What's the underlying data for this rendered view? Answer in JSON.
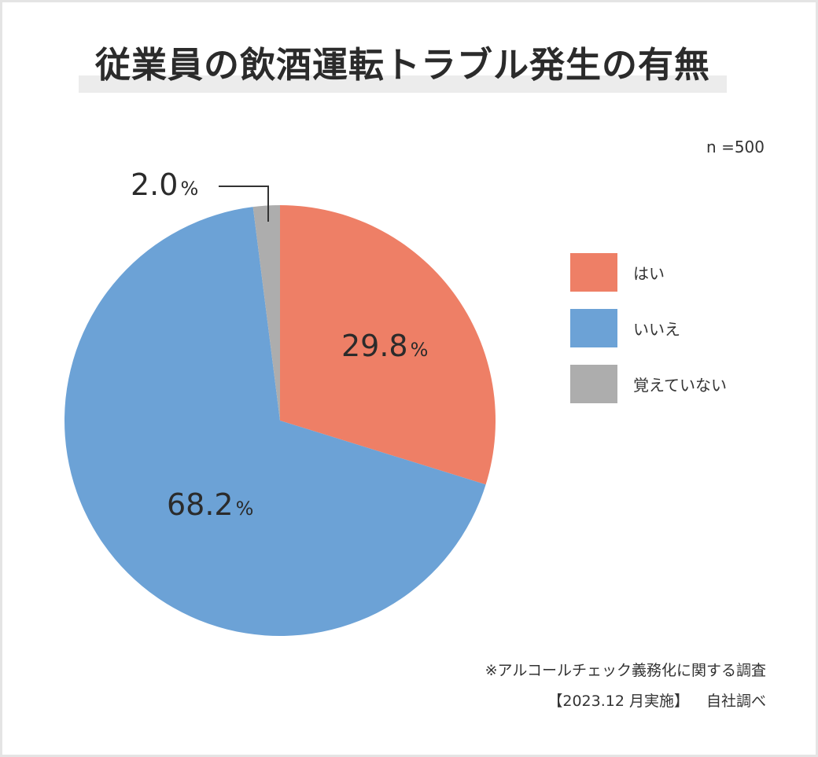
{
  "title": "従業員の飲酒運転トラブル発生の有無",
  "sample_size": "n =500",
  "chart_data": {
    "type": "pie",
    "categories": [
      "はい",
      "いいえ",
      "覚えていない"
    ],
    "values": [
      29.8,
      68.2,
      2.0
    ],
    "value_labels": [
      "29.8",
      "68.2",
      "2.0"
    ],
    "unit": "%",
    "colors": [
      "#ee7f66",
      "#6ca2d6",
      "#adadad"
    ],
    "start_angle": "12 o'clock",
    "direction": "clockwise",
    "legend_position": "right",
    "grid": false
  },
  "legend": {
    "items": [
      {
        "label": "はい",
        "color": "#ee7f66"
      },
      {
        "label": "いいえ",
        "color": "#6ca2d6"
      },
      {
        "label": "覚えていない",
        "color": "#adadad"
      }
    ]
  },
  "notes": {
    "survey": "※アルコールチェック義務化に関する調査",
    "period": "【2023.12 月実施】",
    "source": "自社調べ"
  }
}
